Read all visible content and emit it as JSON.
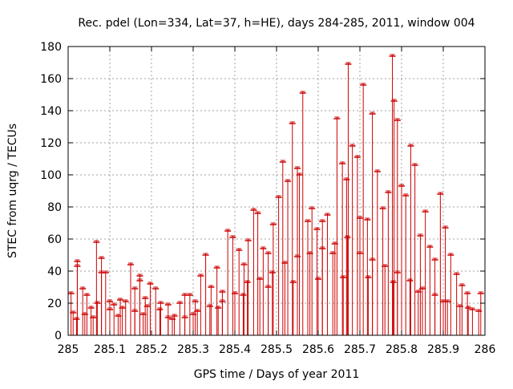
{
  "chart_data": {
    "type": "scatter",
    "title": "Rec. pdel (Lon=334, Lat=37, h=HE), days 284-285, 2011, window 004",
    "xlabel": "GPS time / Days of year 2011",
    "ylabel": "STEC from uqrg / TECUs",
    "xlim": [
      285,
      286
    ],
    "ylim": [
      0,
      180
    ],
    "xticks": [
      285,
      285.1,
      285.2,
      285.3,
      285.4,
      285.5,
      285.6,
      285.7,
      285.8,
      285.9,
      286
    ],
    "xtick_labels": [
      "285",
      "285.1",
      "285.2",
      "285.3",
      "285.4",
      "285.5",
      "285.6",
      "285.7",
      "285.8",
      "285.9",
      "286"
    ],
    "yticks": [
      0,
      20,
      40,
      60,
      80,
      100,
      120,
      140,
      160,
      180
    ],
    "ytick_labels": [
      "0",
      "20",
      "40",
      "60",
      "80",
      "100",
      "120",
      "140",
      "160",
      "180"
    ],
    "grid": true,
    "legend": "none",
    "series_color": "#cc0000",
    "marker": "plus with vertical error bar to 0",
    "series": [
      {
        "name": "STEC",
        "points": [
          {
            "x": 285.007,
            "y": 27
          },
          {
            "x": 285.022,
            "y": 47
          },
          {
            "x": 285.022,
            "y": 44
          },
          {
            "x": 285.035,
            "y": 30
          },
          {
            "x": 285.045,
            "y": 26
          },
          {
            "x": 285.055,
            "y": 18
          },
          {
            "x": 285.068,
            "y": 59
          },
          {
            "x": 285.08,
            "y": 49
          },
          {
            "x": 285.08,
            "y": 40
          },
          {
            "x": 285.09,
            "y": 40
          },
          {
            "x": 285.1,
            "y": 22
          },
          {
            "x": 285.11,
            "y": 20
          },
          {
            "x": 285.125,
            "y": 23
          },
          {
            "x": 285.138,
            "y": 22
          },
          {
            "x": 285.15,
            "y": 45
          },
          {
            "x": 285.16,
            "y": 30
          },
          {
            "x": 285.172,
            "y": 38
          },
          {
            "x": 285.172,
            "y": 35
          },
          {
            "x": 285.185,
            "y": 24
          },
          {
            "x": 285.197,
            "y": 33
          },
          {
            "x": 285.21,
            "y": 30
          },
          {
            "x": 285.222,
            "y": 21
          },
          {
            "x": 285.24,
            "y": 20
          },
          {
            "x": 285.255,
            "y": 13
          },
          {
            "x": 285.268,
            "y": 21
          },
          {
            "x": 285.28,
            "y": 26
          },
          {
            "x": 285.292,
            "y": 26
          },
          {
            "x": 285.305,
            "y": 22
          },
          {
            "x": 285.318,
            "y": 38
          },
          {
            "x": 285.33,
            "y": 51
          },
          {
            "x": 285.343,
            "y": 31
          },
          {
            "x": 285.357,
            "y": 43
          },
          {
            "x": 285.37,
            "y": 28
          },
          {
            "x": 285.383,
            "y": 66
          },
          {
            "x": 285.395,
            "y": 62
          },
          {
            "x": 285.41,
            "y": 54
          },
          {
            "x": 285.422,
            "y": 45
          },
          {
            "x": 285.432,
            "y": 60
          },
          {
            "x": 285.445,
            "y": 79
          },
          {
            "x": 285.455,
            "y": 77
          },
          {
            "x": 285.468,
            "y": 55
          },
          {
            "x": 285.48,
            "y": 52
          },
          {
            "x": 285.492,
            "y": 70
          },
          {
            "x": 285.505,
            "y": 87
          },
          {
            "x": 285.515,
            "y": 109
          },
          {
            "x": 285.527,
            "y": 97
          },
          {
            "x": 285.538,
            "y": 133
          },
          {
            "x": 285.55,
            "y": 105
          },
          {
            "x": 285.555,
            "y": 101
          },
          {
            "x": 285.563,
            "y": 152
          },
          {
            "x": 285.575,
            "y": 72
          },
          {
            "x": 285.585,
            "y": 80
          },
          {
            "x": 285.597,
            "y": 67
          },
          {
            "x": 285.61,
            "y": 72
          },
          {
            "x": 285.622,
            "y": 76
          },
          {
            "x": 285.635,
            "y": 52
          },
          {
            "x": 285.645,
            "y": 136
          },
          {
            "x": 285.658,
            "y": 108
          },
          {
            "x": 285.668,
            "y": 98
          },
          {
            "x": 285.672,
            "y": 170
          },
          {
            "x": 285.682,
            "y": 119
          },
          {
            "x": 285.694,
            "y": 112
          },
          {
            "x": 285.7,
            "y": 74
          },
          {
            "x": 285.708,
            "y": 157
          },
          {
            "x": 285.718,
            "y": 73
          },
          {
            "x": 285.73,
            "y": 139
          },
          {
            "x": 285.742,
            "y": 103
          },
          {
            "x": 285.755,
            "y": 80
          },
          {
            "x": 285.768,
            "y": 90
          },
          {
            "x": 285.778,
            "y": 175
          },
          {
            "x": 285.782,
            "y": 147
          },
          {
            "x": 285.79,
            "y": 135
          },
          {
            "x": 285.8,
            "y": 94
          },
          {
            "x": 285.81,
            "y": 88
          },
          {
            "x": 285.822,
            "y": 119
          },
          {
            "x": 285.832,
            "y": 107
          },
          {
            "x": 285.845,
            "y": 63
          },
          {
            "x": 285.857,
            "y": 78
          },
          {
            "x": 285.868,
            "y": 56
          },
          {
            "x": 285.88,
            "y": 48
          },
          {
            "x": 285.893,
            "y": 89
          },
          {
            "x": 285.905,
            "y": 68
          },
          {
            "x": 285.918,
            "y": 51
          },
          {
            "x": 285.932,
            "y": 39
          },
          {
            "x": 285.945,
            "y": 32
          },
          {
            "x": 285.958,
            "y": 27
          },
          {
            "x": 285.012,
            "y": 15
          },
          {
            "x": 285.04,
            "y": 14
          },
          {
            "x": 285.07,
            "y": 21
          },
          {
            "x": 285.1,
            "y": 17
          },
          {
            "x": 285.13,
            "y": 18
          },
          {
            "x": 285.16,
            "y": 16
          },
          {
            "x": 285.19,
            "y": 19
          },
          {
            "x": 285.22,
            "y": 17
          },
          {
            "x": 285.25,
            "y": 11
          },
          {
            "x": 285.28,
            "y": 12
          },
          {
            "x": 285.31,
            "y": 16
          },
          {
            "x": 285.34,
            "y": 19
          },
          {
            "x": 285.37,
            "y": 22
          },
          {
            "x": 285.4,
            "y": 27
          },
          {
            "x": 285.43,
            "y": 34
          },
          {
            "x": 285.46,
            "y": 36
          },
          {
            "x": 285.49,
            "y": 40
          },
          {
            "x": 285.52,
            "y": 46
          },
          {
            "x": 285.55,
            "y": 50
          },
          {
            "x": 285.58,
            "y": 52
          },
          {
            "x": 285.61,
            "y": 55
          },
          {
            "x": 285.64,
            "y": 58
          },
          {
            "x": 285.67,
            "y": 62
          },
          {
            "x": 285.7,
            "y": 52
          },
          {
            "x": 285.73,
            "y": 48
          },
          {
            "x": 285.76,
            "y": 44
          },
          {
            "x": 285.79,
            "y": 40
          },
          {
            "x": 285.82,
            "y": 35
          },
          {
            "x": 285.85,
            "y": 30
          },
          {
            "x": 285.88,
            "y": 26
          },
          {
            "x": 285.91,
            "y": 22
          },
          {
            "x": 285.94,
            "y": 19
          },
          {
            "x": 285.97,
            "y": 17
          },
          {
            "x": 285.985,
            "y": 16
          },
          {
            "x": 285.02,
            "y": 11
          },
          {
            "x": 285.06,
            "y": 12
          },
          {
            "x": 285.12,
            "y": 13
          },
          {
            "x": 285.18,
            "y": 14
          },
          {
            "x": 285.24,
            "y": 12
          },
          {
            "x": 285.3,
            "y": 14
          },
          {
            "x": 285.36,
            "y": 18
          },
          {
            "x": 285.42,
            "y": 26
          },
          {
            "x": 285.48,
            "y": 31
          },
          {
            "x": 285.54,
            "y": 34
          },
          {
            "x": 285.6,
            "y": 36
          },
          {
            "x": 285.66,
            "y": 37
          },
          {
            "x": 285.72,
            "y": 37
          },
          {
            "x": 285.78,
            "y": 34
          },
          {
            "x": 285.84,
            "y": 28
          },
          {
            "x": 285.9,
            "y": 22
          },
          {
            "x": 285.96,
            "y": 18
          },
          {
            "x": 285.99,
            "y": 27
          }
        ]
      }
    ]
  }
}
